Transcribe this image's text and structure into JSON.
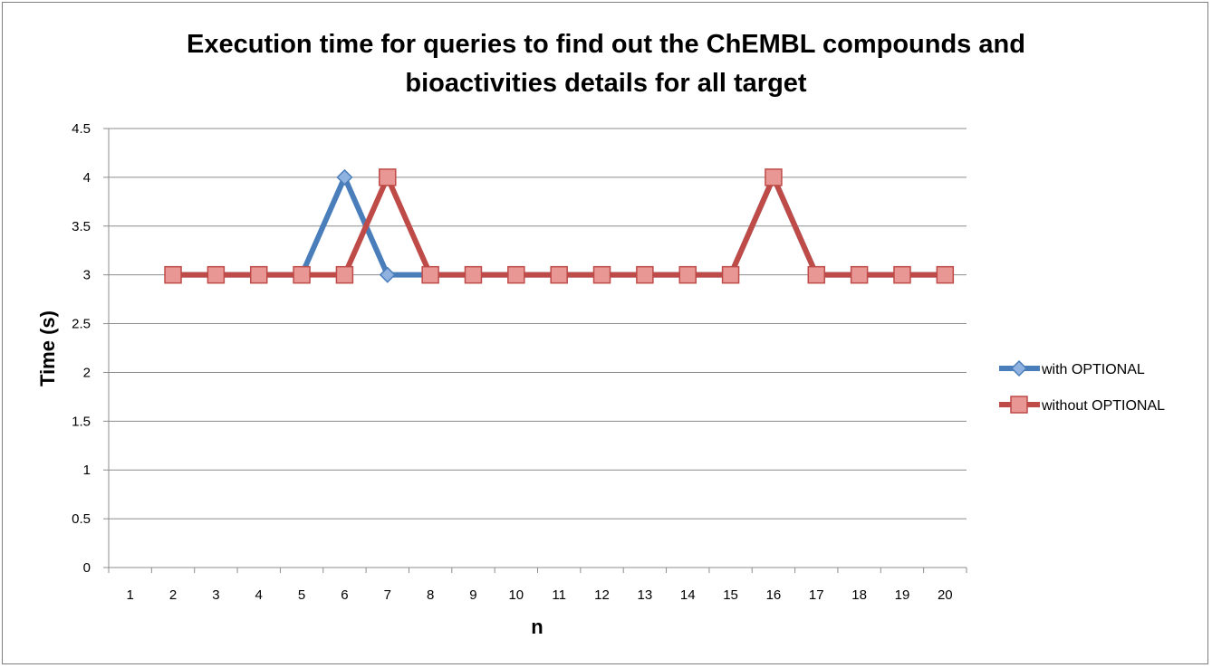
{
  "chart_data": {
    "type": "line",
    "title_lines": [
      "Execution time for queries to find out the ChEMBL compounds and",
      "bioactivities details for all target"
    ],
    "xlabel": "n",
    "ylabel": "Time (s)",
    "categories": [
      "1",
      "2",
      "3",
      "4",
      "5",
      "6",
      "7",
      "8",
      "9",
      "10",
      "11",
      "12",
      "13",
      "14",
      "15",
      "16",
      "17",
      "18",
      "19",
      "20"
    ],
    "ylim": [
      0,
      4.5
    ],
    "yticks": [
      "0",
      "0.5",
      "1",
      "1.5",
      "2",
      "2.5",
      "3",
      "3.5",
      "4",
      "4.5"
    ],
    "ytick_values": [
      0,
      0.5,
      1,
      1.5,
      2,
      2.5,
      3,
      3.5,
      4,
      4.5
    ],
    "grid": "horizontal",
    "legend_position": "right",
    "series": [
      {
        "name": "with OPTIONAL",
        "color": "#4a7ebb",
        "marker": "diamond",
        "values": [
          null,
          3,
          3,
          3,
          3,
          4,
          3,
          3,
          3,
          3,
          3,
          3,
          3,
          3,
          3,
          4,
          3,
          3,
          3,
          3
        ]
      },
      {
        "name": "without OPTIONAL",
        "color": "#be4b48",
        "marker": "square",
        "values": [
          null,
          3,
          3,
          3,
          3,
          3,
          4,
          3,
          3,
          3,
          3,
          3,
          3,
          3,
          3,
          4,
          3,
          3,
          3,
          3
        ]
      }
    ]
  }
}
